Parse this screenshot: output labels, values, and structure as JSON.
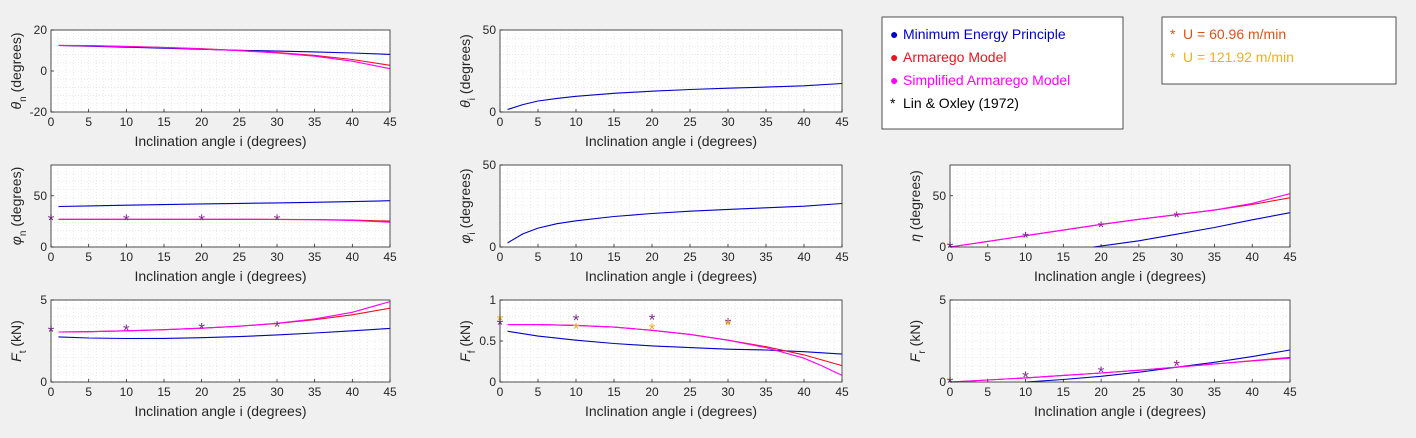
{
  "colors": {
    "minimum_energy": "#0000cc",
    "armarego": "#e8141e",
    "simplified_armarego": "#ff00ff",
    "lin_oxley": "#000000",
    "u_60": "#d95319",
    "u_121": "#edb120",
    "marker_overlap": "#7e2f8e"
  },
  "legend_models": {
    "items": [
      {
        "marker": "●",
        "label": "Minimum Energy Principle",
        "color": "#0000cc"
      },
      {
        "marker": "●",
        "label": "Armarego Model",
        "color": "#e8141e"
      },
      {
        "marker": "●",
        "label": "Simplified Armarego Model",
        "color": "#ff00ff"
      },
      {
        "marker": "*",
        "label": "Lin & Oxley (1972)",
        "color": "#000000"
      }
    ]
  },
  "legend_speeds": {
    "items": [
      {
        "marker": "*",
        "label": "U = 60.96 m/min",
        "color": "#d95319"
      },
      {
        "marker": "*",
        "label": "U = 121.92 m/min",
        "color": "#edb120"
      }
    ]
  },
  "chart_data": [
    {
      "id": "theta_n",
      "type": "line",
      "ylabel": {
        "sym": "θ",
        "sub": "n",
        "unit": " (degrees)"
      },
      "xlabel": "Inclination angle i (degrees)",
      "xlim": [
        0,
        45
      ],
      "ylim": [
        -20,
        20
      ],
      "xticks": [
        0,
        5,
        10,
        15,
        20,
        25,
        30,
        35,
        40,
        45
      ],
      "yticks": [
        -20,
        0,
        20
      ],
      "series": [
        {
          "key": "minimum_energy",
          "x": [
            1,
            5,
            10,
            15,
            20,
            25,
            30,
            35,
            40,
            45
          ],
          "y": [
            12.5,
            12.1,
            11.6,
            11.1,
            10.6,
            10.1,
            9.7,
            9.3,
            8.8,
            8.1
          ]
        },
        {
          "key": "armarego",
          "x": [
            1,
            5,
            10,
            15,
            20,
            25,
            30,
            35,
            40,
            45
          ],
          "y": [
            12.5,
            12.4,
            12.0,
            11.5,
            10.9,
            10.0,
            9.0,
            7.6,
            5.6,
            2.8
          ]
        },
        {
          "key": "simplified_armarego",
          "x": [
            1,
            5,
            10,
            15,
            20,
            25,
            30,
            35,
            40,
            45
          ],
          "y": [
            12.5,
            12.3,
            11.9,
            11.4,
            10.8,
            9.9,
            8.8,
            7.2,
            4.8,
            1.1
          ]
        }
      ],
      "markers": []
    },
    {
      "id": "theta_i",
      "type": "line",
      "ylabel": {
        "sym": "θ",
        "sub": "i",
        "unit": " (degrees)"
      },
      "xlabel": "Inclination angle i (degrees)",
      "xlim": [
        0,
        45
      ],
      "ylim": [
        0,
        50
      ],
      "xticks": [
        0,
        5,
        10,
        15,
        20,
        25,
        30,
        35,
        40,
        45
      ],
      "yticks": [
        0,
        50
      ],
      "series": [
        {
          "key": "minimum_energy",
          "x": [
            1,
            3,
            5,
            7.5,
            10,
            15,
            20,
            25,
            30,
            35,
            40,
            45
          ],
          "y": [
            1.5,
            4.5,
            6.7,
            8.3,
            9.6,
            11.4,
            12.7,
            13.7,
            14.5,
            15.2,
            16.0,
            17.4
          ]
        }
      ],
      "markers": []
    },
    {
      "id": "phi_n",
      "type": "line",
      "ylabel": {
        "sym": "φ",
        "sub": "n",
        "unit": " (degrees)"
      },
      "xlabel": "Inclination angle i (degrees)",
      "xlim": [
        0,
        45
      ],
      "ylim": [
        0,
        80
      ],
      "xticks": [
        0,
        5,
        10,
        15,
        20,
        25,
        30,
        35,
        40,
        45
      ],
      "yticks": [
        0,
        50
      ],
      "series": [
        {
          "key": "minimum_energy",
          "x": [
            1,
            5,
            10,
            15,
            20,
            25,
            30,
            35,
            40,
            45
          ],
          "y": [
            39.5,
            40.1,
            40.8,
            41.4,
            42.0,
            42.5,
            43.0,
            43.6,
            44.3,
            45.2
          ]
        },
        {
          "key": "armarego",
          "x": [
            1,
            5,
            10,
            15,
            20,
            25,
            30,
            35,
            40,
            45
          ],
          "y": [
            27.0,
            27.0,
            27.0,
            27.0,
            27.0,
            27.0,
            26.9,
            26.7,
            26.2,
            25.3
          ]
        },
        {
          "key": "simplified_armarego",
          "x": [
            1,
            5,
            10,
            15,
            20,
            25,
            30,
            35,
            40,
            45
          ],
          "y": [
            27.0,
            27.0,
            27.0,
            27.0,
            27.0,
            27.0,
            26.9,
            26.6,
            25.9,
            24.2
          ]
        }
      ],
      "markers": [
        {
          "x": 0,
          "y": 27,
          "key": "marker_overlap"
        },
        {
          "x": 10,
          "y": 27,
          "key": "marker_overlap"
        },
        {
          "x": 20,
          "y": 27,
          "key": "marker_overlap"
        },
        {
          "x": 30,
          "y": 27,
          "key": "marker_overlap"
        }
      ]
    },
    {
      "id": "phi_i",
      "type": "line",
      "ylabel": {
        "sym": "φ",
        "sub": "i",
        "unit": " (degrees)"
      },
      "xlabel": "Inclination angle i (degrees)",
      "xlim": [
        0,
        45
      ],
      "ylim": [
        0,
        50
      ],
      "xticks": [
        0,
        5,
        10,
        15,
        20,
        25,
        30,
        35,
        40,
        45
      ],
      "yticks": [
        0,
        50
      ],
      "series": [
        {
          "key": "minimum_energy",
          "x": [
            1,
            3,
            5,
            7.5,
            10,
            15,
            20,
            25,
            30,
            35,
            40,
            45
          ],
          "y": [
            2.5,
            8.0,
            11.5,
            14.2,
            16.0,
            18.6,
            20.4,
            21.8,
            22.9,
            23.9,
            24.9,
            26.5
          ]
        }
      ],
      "markers": []
    },
    {
      "id": "eta",
      "type": "line",
      "ylabel": {
        "sym": "η",
        "sub": "",
        "unit": " (degrees)"
      },
      "xlabel": "Inclination angle i (degrees)",
      "xlim": [
        0,
        45
      ],
      "ylim": [
        0,
        80
      ],
      "xticks": [
        0,
        5,
        10,
        15,
        20,
        25,
        30,
        35,
        40,
        45
      ],
      "yticks": [
        0,
        50
      ],
      "series": [
        {
          "key": "minimum_energy",
          "x": [
            19,
            22,
            25,
            30,
            35,
            40,
            45
          ],
          "y": [
            0,
            3,
            6,
            12.5,
            19,
            26.5,
            33.5
          ]
        },
        {
          "key": "armarego",
          "x": [
            0,
            5,
            10,
            15,
            20,
            25,
            30,
            35,
            40,
            45
          ],
          "y": [
            0,
            5.5,
            11,
            16.5,
            22,
            27,
            31.5,
            36,
            41.5,
            48
          ]
        },
        {
          "key": "simplified_armarego",
          "x": [
            0,
            5,
            10,
            15,
            20,
            25,
            30,
            35,
            40,
            45
          ],
          "y": [
            0,
            5.5,
            11,
            16.5,
            22,
            27,
            31.5,
            36,
            42.5,
            52
          ]
        }
      ],
      "markers": [
        {
          "x": 0,
          "y": 0,
          "key": "marker_overlap"
        },
        {
          "x": 10,
          "y": 10,
          "key": "marker_overlap"
        },
        {
          "x": 20,
          "y": 20,
          "key": "marker_overlap"
        },
        {
          "x": 30,
          "y": 30,
          "key": "marker_overlap"
        }
      ]
    },
    {
      "id": "Ft",
      "type": "line",
      "ylabel": {
        "sym": "F",
        "sub": "t",
        "unit": " (kN)"
      },
      "xlabel": "Inclination angle i (degrees)",
      "xlim": [
        0,
        45
      ],
      "ylim": [
        0,
        5
      ],
      "xticks": [
        0,
        5,
        10,
        15,
        20,
        25,
        30,
        35,
        40,
        45
      ],
      "yticks": [
        0,
        5
      ],
      "series": [
        {
          "key": "minimum_energy",
          "x": [
            1,
            5,
            10,
            15,
            20,
            25,
            30,
            35,
            40,
            45
          ],
          "y": [
            2.75,
            2.68,
            2.65,
            2.66,
            2.7,
            2.77,
            2.87,
            2.99,
            3.12,
            3.27
          ]
        },
        {
          "key": "armarego",
          "x": [
            1,
            5,
            10,
            15,
            20,
            25,
            30,
            35,
            40,
            45
          ],
          "y": [
            3.05,
            3.07,
            3.12,
            3.19,
            3.28,
            3.4,
            3.57,
            3.8,
            4.1,
            4.5
          ]
        },
        {
          "key": "simplified_armarego",
          "x": [
            1,
            5,
            10,
            15,
            20,
            25,
            30,
            35,
            40,
            45
          ],
          "y": [
            3.05,
            3.07,
            3.12,
            3.19,
            3.28,
            3.4,
            3.58,
            3.85,
            4.25,
            4.9
          ]
        }
      ],
      "markers": [
        {
          "x": 0,
          "y": 3.1,
          "key": "marker_overlap"
        },
        {
          "x": 10,
          "y": 3.2,
          "key": "marker_overlap"
        },
        {
          "x": 20,
          "y": 3.3,
          "key": "marker_overlap"
        },
        {
          "x": 30,
          "y": 3.4,
          "key": "marker_overlap"
        }
      ]
    },
    {
      "id": "Ff",
      "type": "line",
      "ylabel": {
        "sym": "F",
        "sub": "f",
        "unit": " (kN)"
      },
      "xlabel": "Inclination angle i (degrees)",
      "xlim": [
        0,
        45
      ],
      "ylim": [
        0,
        1
      ],
      "xticks": [
        0,
        5,
        10,
        15,
        20,
        25,
        30,
        35,
        40,
        45
      ],
      "yticks": [
        0,
        0.5,
        1
      ],
      "series": [
        {
          "key": "minimum_energy",
          "x": [
            1,
            5,
            10,
            15,
            20,
            25,
            30,
            35,
            40,
            45
          ],
          "y": [
            0.62,
            0.56,
            0.51,
            0.47,
            0.44,
            0.42,
            0.4,
            0.39,
            0.37,
            0.34
          ]
        },
        {
          "key": "armarego",
          "x": [
            1,
            5,
            10,
            15,
            20,
            25,
            30,
            35,
            40,
            45
          ],
          "y": [
            0.7,
            0.7,
            0.69,
            0.67,
            0.63,
            0.58,
            0.51,
            0.43,
            0.33,
            0.2
          ]
        },
        {
          "key": "simplified_armarego",
          "x": [
            1,
            5,
            10,
            15,
            20,
            25,
            30,
            35,
            40,
            42.5,
            45
          ],
          "y": [
            0.7,
            0.7,
            0.69,
            0.67,
            0.63,
            0.58,
            0.51,
            0.42,
            0.29,
            0.19,
            0.08
          ]
        }
      ],
      "markers": [
        {
          "x": 0,
          "y": 0.76,
          "key": "u_121"
        },
        {
          "x": 0,
          "y": 0.71,
          "key": "marker_overlap"
        },
        {
          "x": 10,
          "y": 0.76,
          "key": "marker_overlap"
        },
        {
          "x": 10,
          "y": 0.66,
          "key": "u_121"
        },
        {
          "x": 20,
          "y": 0.77,
          "key": "marker_overlap"
        },
        {
          "x": 20,
          "y": 0.65,
          "key": "u_121"
        },
        {
          "x": 30,
          "y": 0.72,
          "key": "marker_overlap"
        },
        {
          "x": 30,
          "y": 0.7,
          "key": "u_121"
        }
      ]
    },
    {
      "id": "Fr",
      "type": "line",
      "ylabel": {
        "sym": "F",
        "sub": "r",
        "unit": " (kN)"
      },
      "xlabel": "Inclination angle i (degrees)",
      "xlim": [
        0,
        45
      ],
      "ylim": [
        0,
        5
      ],
      "xticks": [
        0,
        5,
        10,
        15,
        20,
        25,
        30,
        35,
        40,
        45
      ],
      "yticks": [
        0,
        5
      ],
      "series": [
        {
          "key": "minimum_energy",
          "x": [
            10,
            15,
            20,
            25,
            30,
            35,
            40,
            45
          ],
          "y": [
            0,
            0.15,
            0.35,
            0.6,
            0.9,
            1.2,
            1.55,
            1.95
          ]
        },
        {
          "key": "armarego",
          "x": [
            0,
            5,
            10,
            15,
            20,
            25,
            30,
            35,
            40,
            45
          ],
          "y": [
            0,
            0.12,
            0.25,
            0.4,
            0.55,
            0.72,
            0.9,
            1.1,
            1.3,
            1.5
          ]
        },
        {
          "key": "simplified_armarego",
          "x": [
            0,
            5,
            10,
            15,
            20,
            25,
            30,
            35,
            40,
            45
          ],
          "y": [
            0,
            0.12,
            0.25,
            0.4,
            0.55,
            0.72,
            0.9,
            1.1,
            1.28,
            1.45
          ]
        }
      ],
      "markers": [
        {
          "x": 0,
          "y": 0,
          "key": "marker_overlap"
        },
        {
          "x": 10,
          "y": 0.35,
          "key": "marker_overlap"
        },
        {
          "x": 20,
          "y": 0.65,
          "key": "marker_overlap"
        },
        {
          "x": 30,
          "y": 1.05,
          "key": "marker_overlap"
        }
      ]
    }
  ]
}
